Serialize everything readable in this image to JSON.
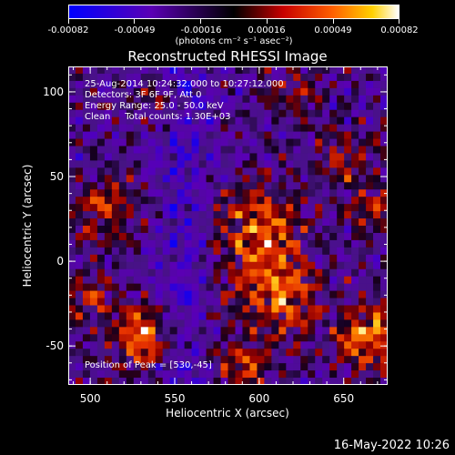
{
  "colorbar": {
    "ticks": [
      "-0.00082",
      "-0.00049",
      "-0.00016",
      "0.00016",
      "0.00049",
      "0.00082"
    ],
    "units": "(photons cm⁻² s⁻¹ asec⁻²)"
  },
  "chart_data": {
    "type": "heatmap",
    "title": "Reconstructed RHESSI Image",
    "xlabel": "Heliocentric X (arcsec)",
    "ylabel": "Heliocentric Y (arcsec)",
    "xlim": [
      487,
      676
    ],
    "ylim": [
      -73,
      115
    ],
    "xticks": [
      500,
      550,
      600,
      650
    ],
    "yticks": [
      -50,
      0,
      50,
      100
    ],
    "zlim": [
      -0.00082,
      0.00082
    ],
    "peak_position": [
      530,
      -45
    ],
    "info_lines": [
      "25-Aug-2014 10:24:32.000 to 10:27:12.000",
      "Detectors: 3F 6F 9F, Att 0",
      "Energy Range: 25.0 - 50.0 keV",
      "Clean     Total counts: 1.30E+03"
    ],
    "peak_text": "Position of Peak = [530,-45]"
  },
  "timestamp": "16-May-2022 10:26"
}
